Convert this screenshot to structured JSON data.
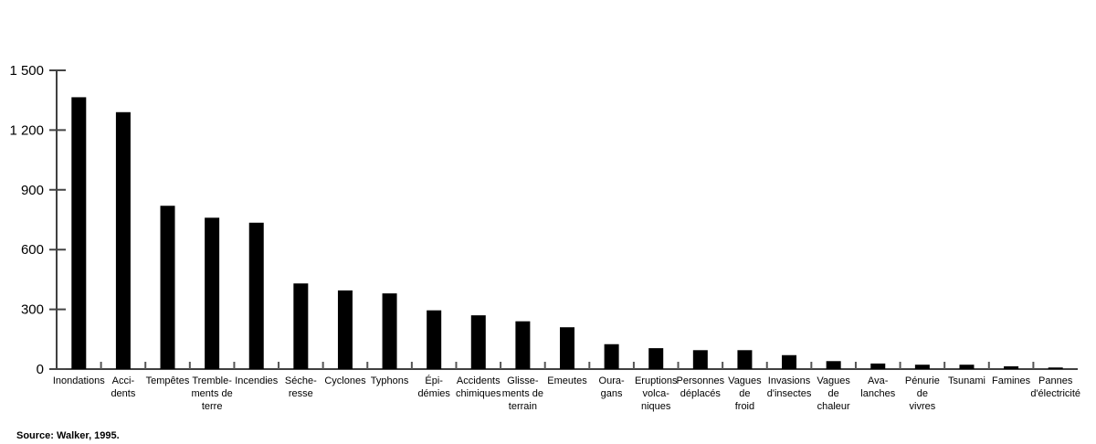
{
  "chart_data": {
    "type": "bar",
    "categories": [
      "Inondations",
      "Acci-\ndents",
      "Tempêtes",
      "Tremble-\nments de\nterre",
      "Incendies",
      "Séche-\nresse",
      "Cyclones",
      "Typhons",
      "Épi-\ndémies",
      "Accidents\nchimiques",
      "Glisse-\nments de\nterrain",
      "Emeutes",
      "Oura-\ngans",
      "Eruptions\nvolca-\nniques",
      "Personnes\ndéplacés",
      "Vagues\nde\nfroid",
      "Invasions\nd'insectes",
      "Vagues\nde\nchaleur",
      "Ava-\nlanches",
      "Pénurie\nde\nvivres",
      "Tsunami",
      "Famines",
      "Pannes\nd'électricité"
    ],
    "values": [
      1365,
      1290,
      820,
      760,
      735,
      430,
      395,
      380,
      295,
      270,
      240,
      210,
      125,
      105,
      95,
      95,
      70,
      40,
      28,
      22,
      22,
      14,
      8
    ],
    "color": "#000000",
    "ylim": [
      0,
      1500
    ],
    "yticks": [
      0,
      300,
      600,
      900,
      {
        "value": 1200,
        "label": "1 200"
      },
      {
        "value": 1500,
        "label": "1 500"
      }
    ],
    "source": "Source: Walker, 1995."
  }
}
